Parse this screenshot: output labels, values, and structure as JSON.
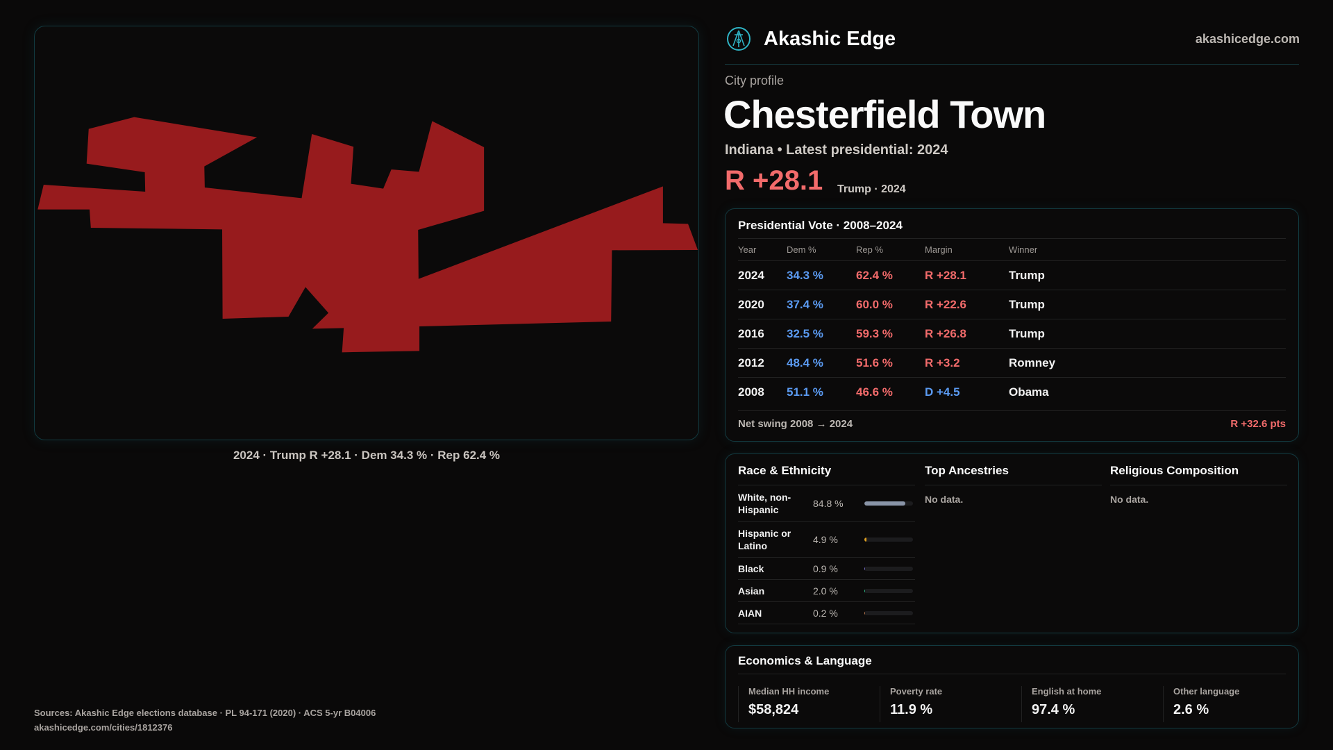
{
  "brand": {
    "name": "Akashic Edge",
    "site": "akashicedge.com",
    "logo_icon": "compass-seal-icon",
    "accent": "#2fb3c4"
  },
  "profile": {
    "kicker": "City profile",
    "city": "Chesterfield Town",
    "subtitle": "Indiana • Latest presidential: 2024",
    "margin": "R +28.1",
    "margin_sub": "Trump · 2024"
  },
  "map": {
    "caption": "2024 · Trump R +28.1 · Dem 34.3 % · Rep 62.4 %",
    "fill": "#971b1d"
  },
  "presidential": {
    "title": "Presidential Vote · 2008–2024",
    "headers": [
      "Year",
      "Dem %",
      "Rep %",
      "Margin",
      "Winner"
    ],
    "rows": [
      {
        "year": "2024",
        "dem": "34.3 %",
        "rep": "62.4 %",
        "margin": "R +28.1",
        "party": "R",
        "winner": "Trump"
      },
      {
        "year": "2020",
        "dem": "37.4 %",
        "rep": "60.0 %",
        "margin": "R +22.6",
        "party": "R",
        "winner": "Trump"
      },
      {
        "year": "2016",
        "dem": "32.5 %",
        "rep": "59.3 %",
        "margin": "R +26.8",
        "party": "R",
        "winner": "Trump"
      },
      {
        "year": "2012",
        "dem": "48.4 %",
        "rep": "51.6 %",
        "margin": "R +3.2",
        "party": "R",
        "winner": "Romney"
      },
      {
        "year": "2008",
        "dem": "51.1 %",
        "rep": "46.6 %",
        "margin": "D +4.5",
        "party": "D",
        "winner": "Obama"
      }
    ],
    "swing_label": "Net swing 2008 → 2024",
    "swing_value": "R +32.6 pts"
  },
  "race": {
    "title": "Race & Ethnicity",
    "rows": [
      {
        "label": "White, non-Hispanic",
        "pct": "84.8 %",
        "value": 84.8,
        "color": "#8a95a8"
      },
      {
        "label": "Hispanic or Latino",
        "pct": "4.9 %",
        "value": 4.9,
        "color": "#e0a020"
      },
      {
        "label": "Black",
        "pct": "0.9 %",
        "value": 0.9,
        "color": "#7a6fd0"
      },
      {
        "label": "Asian",
        "pct": "2.0 %",
        "value": 2.0,
        "color": "#2fc08a"
      },
      {
        "label": "AIAN",
        "pct": "0.2 %",
        "value": 0.2,
        "color": "#c07a50"
      }
    ]
  },
  "ancestries": {
    "title": "Top Ancestries",
    "empty": "No data."
  },
  "religion": {
    "title": "Religious Composition",
    "empty": "No data."
  },
  "econ": {
    "title": "Economics & Language",
    "stats": [
      {
        "label": "Median HH income",
        "value": "$58,824"
      },
      {
        "label": "Poverty rate",
        "value": "11.9 %"
      },
      {
        "label": "English at home",
        "value": "97.4 %"
      },
      {
        "label": "Other language",
        "value": "2.6 %"
      }
    ]
  },
  "sources": {
    "line1": "Sources: Akashic Edge elections database · PL 94-171 (2020) · ACS 5-yr B04006",
    "line2": "akashicedge.com/cities/1812376"
  }
}
